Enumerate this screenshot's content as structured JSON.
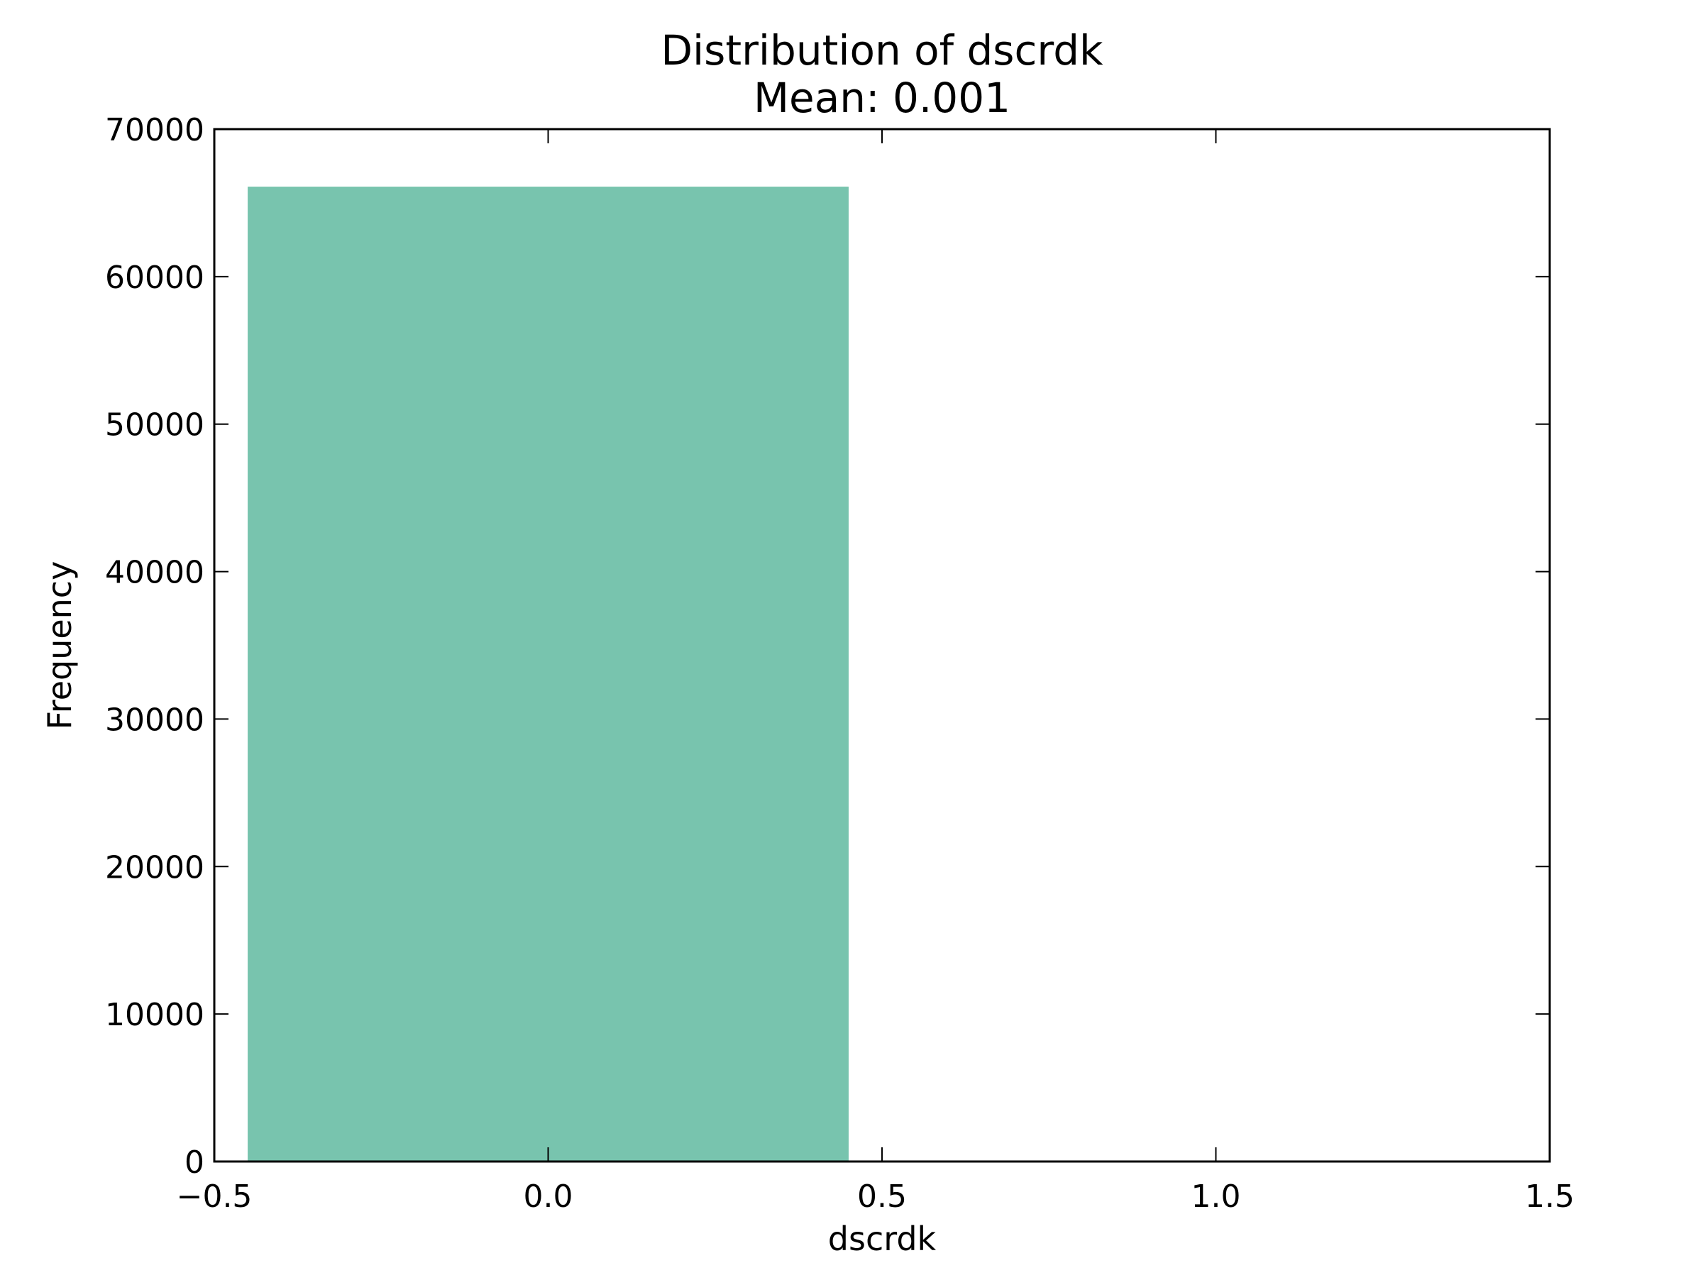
{
  "chart_data": {
    "type": "bar",
    "title": "Distribution of dscrdk",
    "subtitle": "Mean: 0.001",
    "xlabel": "dscrdk",
    "ylabel": "Frequency",
    "xlim": [
      -0.5,
      1.5
    ],
    "ylim": [
      0,
      70000
    ],
    "x_ticks": [
      -0.5,
      0.0,
      0.5,
      1.0,
      1.5
    ],
    "x_tick_labels": [
      "−0.5",
      "0.0",
      "0.5",
      "1.0",
      "1.5"
    ],
    "y_ticks": [
      0,
      10000,
      20000,
      30000,
      40000,
      50000,
      60000,
      70000
    ],
    "y_tick_labels": [
      "0",
      "10000",
      "20000",
      "30000",
      "40000",
      "50000",
      "60000",
      "70000"
    ],
    "bars": [
      {
        "x_start": -0.45,
        "x_end": 0.45,
        "value": 66100
      }
    ],
    "bar_color": "#78c4ae",
    "grid": false,
    "legend": "none"
  }
}
